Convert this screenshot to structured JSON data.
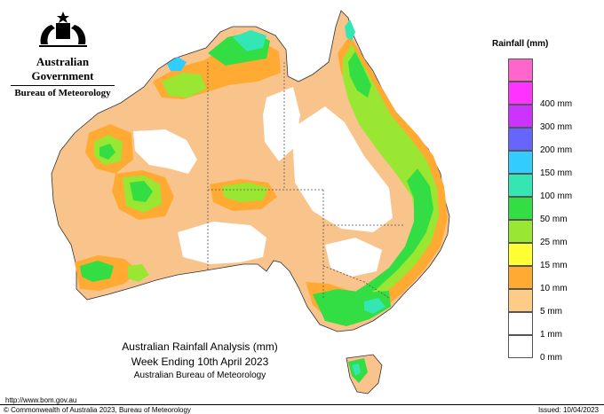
{
  "header": {
    "government": "Australian Government",
    "bureau": "Bureau of Meteorology"
  },
  "legend": {
    "title": "Rainfall (mm)",
    "items": [
      {
        "label": "",
        "color": "#ff66cc"
      },
      {
        "label": "400 mm",
        "color": "#ff33ff"
      },
      {
        "label": "300 mm",
        "color": "#cc33ff"
      },
      {
        "label": "200 mm",
        "color": "#6666ff"
      },
      {
        "label": "150 mm",
        "color": "#33ccff"
      },
      {
        "label": "100 mm",
        "color": "#33e6b3"
      },
      {
        "label": "50 mm",
        "color": "#33dd44"
      },
      {
        "label": "25 mm",
        "color": "#99e633"
      },
      {
        "label": "15 mm",
        "color": "#ffff33"
      },
      {
        "label": "10 mm",
        "color": "#ffaa33"
      },
      {
        "label": "5 mm",
        "color": "#ffcc88"
      },
      {
        "label": "1 mm",
        "color": "#ffffff"
      },
      {
        "label": "0 mm",
        "color": "#ffffff"
      }
    ]
  },
  "caption": {
    "line1": "Australian Rainfall Analysis (mm)",
    "line2": "Week Ending 10th April 2023",
    "line3": "Australian Bureau of Meteorology"
  },
  "footer": {
    "url": "http://www.bom.gov.au",
    "copyright": "© Commonwealth of Australia 2023, Bureau of Meteorology",
    "issued": "Issued: 10/04/2023"
  },
  "colors": {
    "none": "#ffffff",
    "light": "#f8c48c",
    "orange": "#ffaa33",
    "yellow": "#ffff33",
    "lime": "#99e633",
    "green": "#33dd44",
    "teal": "#33e6b3",
    "blue": "#33ccff",
    "outline": "#333333",
    "border": "#555555"
  }
}
